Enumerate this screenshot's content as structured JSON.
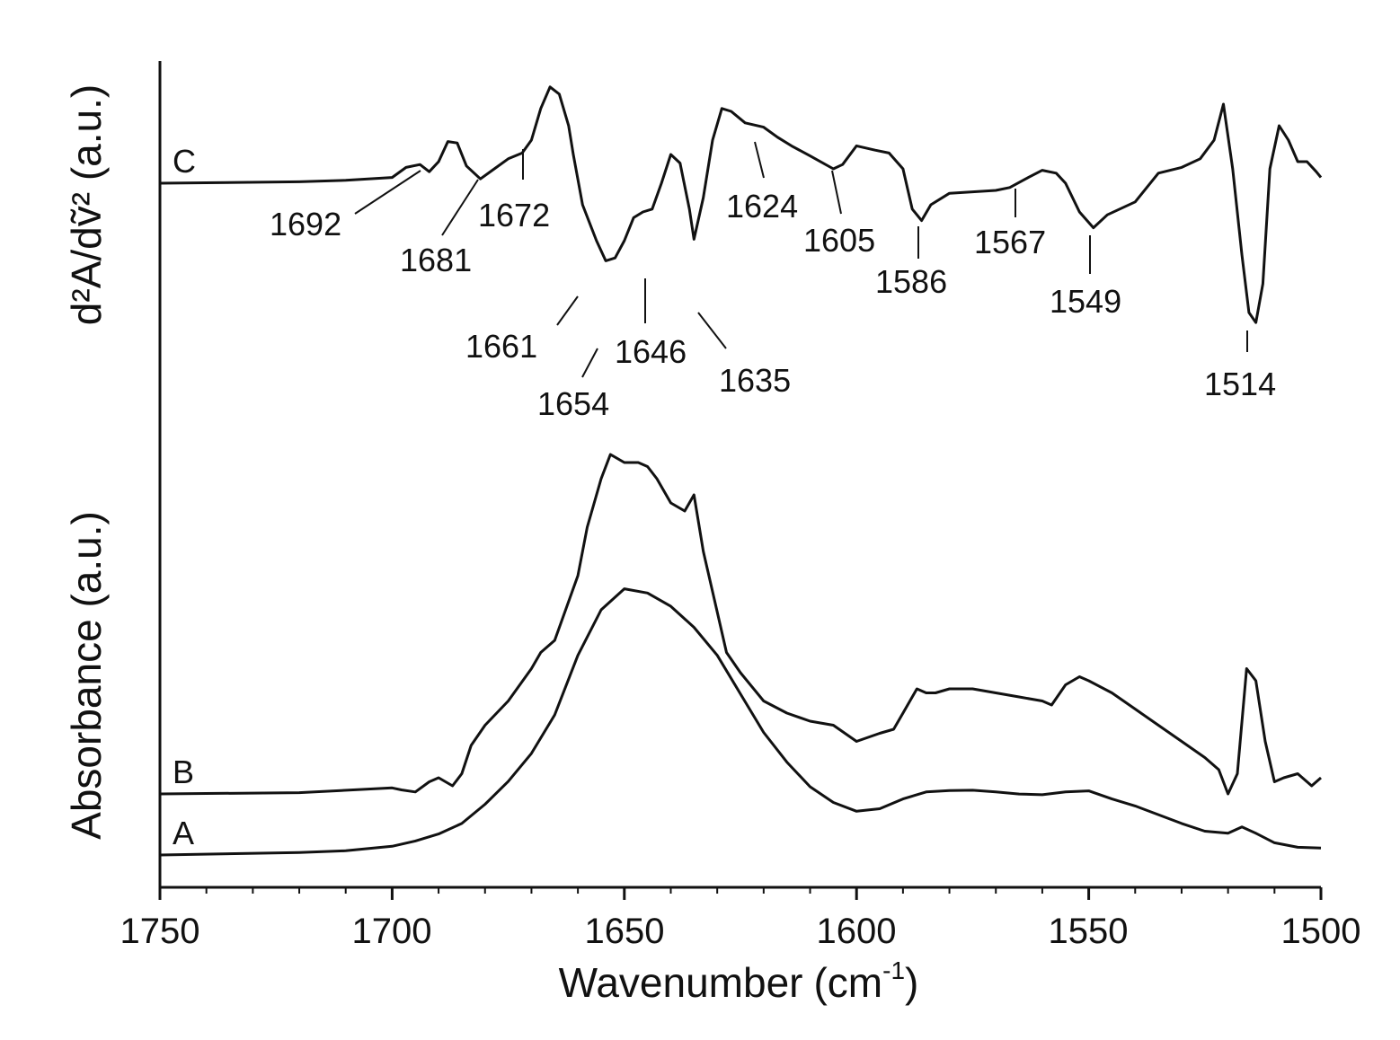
{
  "chart_data": {
    "type": "line",
    "xlabel": "Wavenumber",
    "xlabel_unit_base": "(cm",
    "xlabel_unit_exp": "-1",
    "xlabel_unit_close": ")",
    "ylabel_upper": "d²A/dṽ² (a.u.)",
    "ylabel_lower": "Absorbance (a.u.)",
    "x_ticks": [
      "1750",
      "1700",
      "1650",
      "1600",
      "1550",
      "1500"
    ],
    "xlim": [
      1750,
      1500
    ],
    "x_reversed": true,
    "series": [
      {
        "name": "A",
        "x": [
          1750,
          1720,
          1710,
          1700,
          1695,
          1690,
          1685,
          1680,
          1675,
          1670,
          1665,
          1660,
          1655,
          1650,
          1645,
          1640,
          1635,
          1630,
          1625,
          1620,
          1615,
          1610,
          1605,
          1600,
          1595,
          1590,
          1585,
          1580,
          1575,
          1570,
          1565,
          1560,
          1555,
          1550,
          1545,
          1540,
          1535,
          1530,
          1525,
          1520,
          1517,
          1514,
          1510,
          1505,
          1500
        ],
        "y": [
          0.0,
          0.007,
          0.012,
          0.025,
          0.04,
          0.06,
          0.09,
          0.145,
          0.21,
          0.29,
          0.4,
          0.57,
          0.7,
          0.76,
          0.748,
          0.71,
          0.65,
          0.57,
          0.46,
          0.35,
          0.265,
          0.195,
          0.15,
          0.125,
          0.132,
          0.16,
          0.18,
          0.184,
          0.185,
          0.18,
          0.174,
          0.172,
          0.18,
          0.183,
          0.16,
          0.14,
          0.115,
          0.09,
          0.068,
          0.062,
          0.08,
          0.062,
          0.035,
          0.022,
          0.02
        ]
      },
      {
        "name": "B",
        "x": [
          1750,
          1720,
          1700,
          1698,
          1695,
          1692,
          1690,
          1687,
          1685,
          1683,
          1680,
          1675,
          1670,
          1668,
          1665,
          1660,
          1658,
          1655,
          1653,
          1650,
          1647,
          1645,
          1643,
          1640,
          1637,
          1635,
          1633,
          1630,
          1628,
          1625,
          1620,
          1615,
          1610,
          1605,
          1600,
          1595,
          1592,
          1590,
          1587,
          1585,
          1583,
          1580,
          1575,
          1570,
          1565,
          1560,
          1558,
          1555,
          1552,
          1550,
          1545,
          1540,
          1535,
          1530,
          1525,
          1522,
          1520,
          1518,
          1516,
          1514,
          1512,
          1510,
          1508,
          1505,
          1502,
          1500
        ],
        "y": [
          0.0,
          0.003,
          0.015,
          0.01,
          0.005,
          0.03,
          0.04,
          0.02,
          0.05,
          0.12,
          0.17,
          0.23,
          0.31,
          0.35,
          0.38,
          0.54,
          0.66,
          0.78,
          0.84,
          0.82,
          0.82,
          0.81,
          0.78,
          0.72,
          0.7,
          0.74,
          0.6,
          0.45,
          0.35,
          0.3,
          0.23,
          0.2,
          0.18,
          0.17,
          0.13,
          0.15,
          0.16,
          0.2,
          0.26,
          0.25,
          0.25,
          0.26,
          0.26,
          0.25,
          0.24,
          0.23,
          0.22,
          0.27,
          0.29,
          0.28,
          0.25,
          0.21,
          0.17,
          0.13,
          0.09,
          0.06,
          0.0,
          0.05,
          0.31,
          0.28,
          0.13,
          0.03,
          0.04,
          0.05,
          0.02,
          0.04
        ]
      },
      {
        "name": "C",
        "x": [
          1750,
          1720,
          1710,
          1700,
          1697,
          1694,
          1692,
          1690,
          1688,
          1686,
          1684,
          1681,
          1678,
          1675,
          1672,
          1670,
          1668,
          1666,
          1664,
          1662,
          1661,
          1659,
          1656,
          1654,
          1652,
          1650,
          1648,
          1646,
          1644,
          1642,
          1640,
          1638,
          1636,
          1635,
          1633,
          1631,
          1629,
          1627,
          1624,
          1620,
          1617,
          1614,
          1610,
          1605,
          1603,
          1600,
          1596,
          1593,
          1590,
          1588,
          1586,
          1584,
          1580,
          1575,
          1570,
          1567,
          1563,
          1560,
          1557,
          1555,
          1552,
          1549,
          1546,
          1540,
          1535,
          1530,
          1526,
          1523,
          1521,
          1519,
          1517,
          1515.5,
          1514,
          1512.5,
          1511,
          1509,
          1507,
          1505,
          1503,
          1501,
          1500
        ],
        "y": [
          0.0,
          0.01,
          0.02,
          0.04,
          0.11,
          0.13,
          0.08,
          0.15,
          0.29,
          0.28,
          0.12,
          0.03,
          0.1,
          0.17,
          0.21,
          0.3,
          0.52,
          0.67,
          0.62,
          0.4,
          0.2,
          -0.15,
          -0.4,
          -0.54,
          -0.52,
          -0.4,
          -0.24,
          -0.2,
          -0.18,
          0.0,
          0.2,
          0.14,
          -0.18,
          -0.39,
          -0.1,
          0.3,
          0.52,
          0.5,
          0.42,
          0.39,
          0.32,
          0.26,
          0.19,
          0.1,
          0.13,
          0.26,
          0.23,
          0.21,
          0.1,
          -0.18,
          -0.26,
          -0.15,
          -0.07,
          -0.06,
          -0.05,
          -0.03,
          0.04,
          0.09,
          0.07,
          0.0,
          -0.2,
          -0.31,
          -0.22,
          -0.13,
          0.07,
          0.11,
          0.17,
          0.3,
          0.55,
          0.1,
          -0.5,
          -0.9,
          -0.97,
          -0.7,
          0.1,
          0.4,
          0.3,
          0.15,
          0.15,
          0.08,
          0.04
        ]
      }
    ],
    "curve_labels": [
      "C",
      "B",
      "A"
    ],
    "peak_annotations": [
      "1692",
      "1681",
      "1672",
      "1661",
      "1654",
      "1646",
      "1635",
      "1624",
      "1605",
      "1586",
      "1567",
      "1549",
      "1514"
    ]
  }
}
